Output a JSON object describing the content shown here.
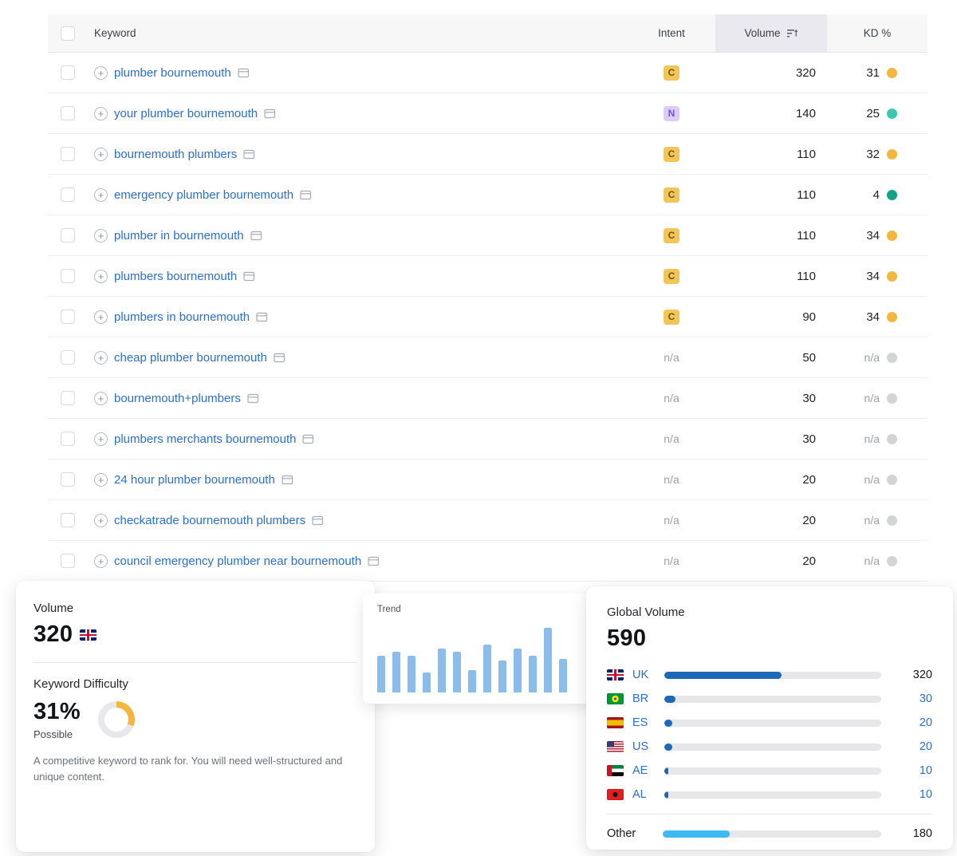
{
  "table": {
    "headers": {
      "keyword": "Keyword",
      "intent": "Intent",
      "volume": "Volume",
      "kd": "KD %"
    },
    "sorted_column": "volume",
    "rows": [
      {
        "keyword": "plumber bournemouth",
        "intent": "C",
        "volume": "320",
        "kd": "31",
        "kd_dot_color": "#f4b63f"
      },
      {
        "keyword": "your plumber bournemouth",
        "intent": "N",
        "volume": "140",
        "kd": "25",
        "kd_dot_color": "#3fc7ad"
      },
      {
        "keyword": "bournemouth plumbers",
        "intent": "C",
        "volume": "110",
        "kd": "32",
        "kd_dot_color": "#f4b63f"
      },
      {
        "keyword": "emergency plumber bournemouth",
        "intent": "C",
        "volume": "110",
        "kd": "4",
        "kd_dot_color": "#12a286"
      },
      {
        "keyword": "plumber in bournemouth",
        "intent": "C",
        "volume": "110",
        "kd": "34",
        "kd_dot_color": "#f4b63f"
      },
      {
        "keyword": "plumbers bournemouth",
        "intent": "C",
        "volume": "110",
        "kd": "34",
        "kd_dot_color": "#f4b63f"
      },
      {
        "keyword": "plumbers in bournemouth",
        "intent": "C",
        "volume": "90",
        "kd": "34",
        "kd_dot_color": "#f4b63f"
      },
      {
        "keyword": "cheap plumber bournemouth",
        "intent": "n/a",
        "volume": "50",
        "kd": "n/a",
        "kd_dot_color": "#d2d4d8"
      },
      {
        "keyword": "bournemouth+plumbers",
        "intent": "n/a",
        "volume": "30",
        "kd": "n/a",
        "kd_dot_color": "#d2d4d8"
      },
      {
        "keyword": "plumbers merchants bournemouth",
        "intent": "n/a",
        "volume": "30",
        "kd": "n/a",
        "kd_dot_color": "#d2d4d8"
      },
      {
        "keyword": "24 hour plumber bournemouth",
        "intent": "n/a",
        "volume": "20",
        "kd": "n/a",
        "kd_dot_color": "#d2d4d8"
      },
      {
        "keyword": "checkatrade bournemouth plumbers",
        "intent": "n/a",
        "volume": "20",
        "kd": "n/a",
        "kd_dot_color": "#d2d4d8"
      },
      {
        "keyword": "council emergency plumber near bournemouth",
        "intent": "n/a",
        "volume": "20",
        "kd": "n/a",
        "kd_dot_color": "#d2d4d8"
      }
    ]
  },
  "volume_card": {
    "title": "Volume",
    "value": "320",
    "flag": "uk",
    "kd_title": "Keyword Difficulty",
    "kd_value": "31%",
    "kd_percent": 31,
    "kd_ring_color": "#f4b63f",
    "kd_level": "Possible",
    "kd_description": "A competitive keyword to rank for. You will need well-structured and unique content."
  },
  "trend": {
    "title": "Trend",
    "chart_data": {
      "type": "bar",
      "values": [
        52,
        58,
        52,
        28,
        62,
        58,
        32,
        68,
        46,
        62,
        52,
        92,
        48
      ],
      "bar_color": "#8abde9"
    }
  },
  "global_volume": {
    "title": "Global Volume",
    "value": "590",
    "rows": [
      {
        "code": "UK",
        "flag": "uk",
        "value": "320",
        "percent": 54,
        "highlight": true
      },
      {
        "code": "BR",
        "flag": "br",
        "value": "30",
        "percent": 5,
        "highlight": false
      },
      {
        "code": "ES",
        "flag": "es",
        "value": "20",
        "percent": 3.5,
        "highlight": false
      },
      {
        "code": "US",
        "flag": "us",
        "value": "20",
        "percent": 3.5,
        "highlight": false
      },
      {
        "code": "AE",
        "flag": "ae",
        "value": "10",
        "percent": 2,
        "highlight": false
      },
      {
        "code": "AL",
        "flag": "al",
        "value": "10",
        "percent": 2,
        "highlight": false
      }
    ],
    "other": {
      "label": "Other",
      "value": "180",
      "percent": 30.5
    }
  },
  "icons": {
    "add_keyword_icon": "+",
    "sort_icon": "sort-descending-lines",
    "serp_icon": "serp-page-window"
  },
  "colors": {
    "link_blue": "#2a6fd3",
    "country_bar_fill": "#1e68b8",
    "other_bar_fill": "#3eb9f6",
    "intent_commercial_bg": "#f1c557",
    "intent_navigational_bg": "#dccbf7"
  }
}
